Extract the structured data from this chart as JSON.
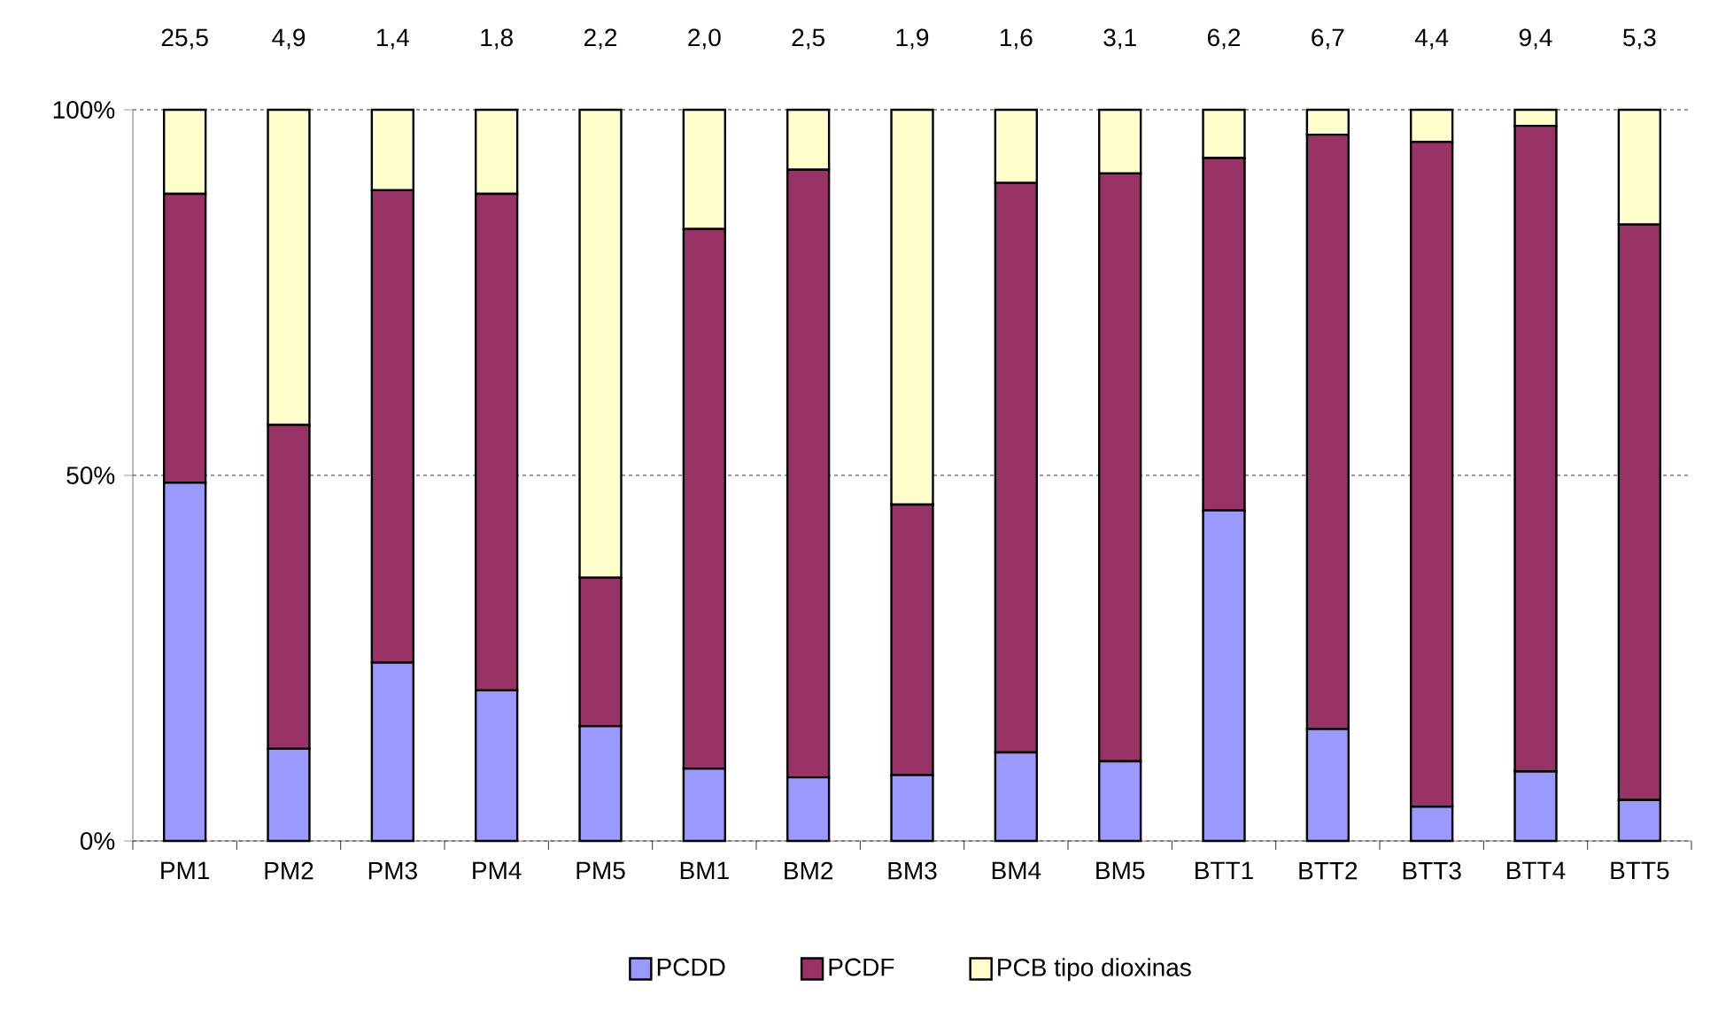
{
  "chart_data": {
    "type": "bar",
    "stacked": true,
    "categories": [
      "PM1",
      "PM2",
      "PM3",
      "PM4",
      "PM5",
      "BM1",
      "BM2",
      "BM3",
      "BM4",
      "BM5",
      "BTT1",
      "BTT2",
      "BTT3",
      "BTT4",
      "BTT5"
    ],
    "series": [
      {
        "name": "PCDD",
        "color": "#9999ff",
        "values": [
          49.0,
          12.6,
          24.4,
          20.6,
          15.7,
          9.9,
          8.7,
          9.0,
          12.1,
          10.9,
          45.2,
          15.3,
          4.7,
          9.5,
          5.6
        ]
      },
      {
        "name": "PCDF",
        "color": "#993366",
        "values": [
          39.5,
          44.3,
          64.6,
          67.9,
          20.3,
          73.8,
          83.1,
          37.0,
          77.9,
          80.4,
          48.2,
          81.3,
          90.9,
          88.3,
          78.7
        ]
      },
      {
        "name": "PCB tipo dioxinas",
        "color": "#ffffcc",
        "values": [
          11.5,
          43.1,
          11.0,
          11.5,
          64.0,
          16.3,
          8.2,
          54.0,
          10.0,
          8.7,
          6.6,
          3.4,
          4.4,
          2.2,
          15.7
        ]
      }
    ],
    "annotations": [
      "25,5",
      "4,9",
      "1,4",
      "1,8",
      "2,2",
      "2,0",
      "2,5",
      "1,9",
      "1,6",
      "3,1",
      "6,2",
      "6,7",
      "4,4",
      "9,4",
      "5,3"
    ],
    "ylim": [
      0,
      100
    ],
    "yticks": [
      {
        "value": 0,
        "label": "0%"
      },
      {
        "value": 50,
        "label": "50%"
      },
      {
        "value": 100,
        "label": "100%"
      }
    ],
    "grid": "y",
    "legend": "bottom"
  }
}
